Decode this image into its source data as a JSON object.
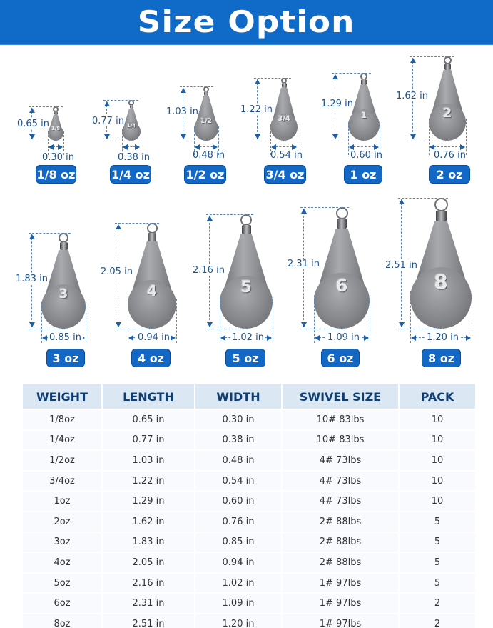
{
  "banner": {
    "title": "Size Option",
    "background_color": "#0f6bc7"
  },
  "accent_color": "#1268c4",
  "dimension_color": "#1d5591",
  "sinkers": [
    {
      "weight_label": "1/8 oz",
      "engraving": "1/8",
      "length": "0.65 in",
      "width": "0.30 in"
    },
    {
      "weight_label": "1/4 oz",
      "engraving": "1/4",
      "length": "0.77 in",
      "width": "0.38 in"
    },
    {
      "weight_label": "1/2 oz",
      "engraving": "1/2",
      "length": "1.03 in",
      "width": "0.48 in"
    },
    {
      "weight_label": "3/4 oz",
      "engraving": "3/4",
      "length": "1.22 in",
      "width": "0.54 in"
    },
    {
      "weight_label": "1 oz",
      "engraving": "1",
      "length": "1.29 in",
      "width": "0.60 in"
    },
    {
      "weight_label": "2 oz",
      "engraving": "2",
      "length": "1.62 in",
      "width": "0.76 in"
    },
    {
      "weight_label": "3 oz",
      "engraving": "3",
      "length": "1.83 in",
      "width": "0.85 in"
    },
    {
      "weight_label": "4 oz",
      "engraving": "4",
      "length": "2.05 in",
      "width": "0.94 in"
    },
    {
      "weight_label": "5 oz",
      "engraving": "5",
      "length": "2.16 in",
      "width": "1.02 in"
    },
    {
      "weight_label": "6 oz",
      "engraving": "6",
      "length": "2.31 in",
      "width": "1.09 in"
    },
    {
      "weight_label": "8 oz",
      "engraving": "8",
      "length": "2.51 in",
      "width": "1.20 in"
    }
  ],
  "table": {
    "headers": [
      "WEIGHT",
      "LENGTH",
      "WIDTH",
      "SWIVEL SIZE",
      "PACK"
    ],
    "rows": [
      [
        "1/8oz",
        "0.65 in",
        "0.30 in",
        "10# 83lbs",
        "10"
      ],
      [
        "1/4oz",
        "0.77 in",
        "0.38 in",
        "10# 83lbs",
        "10"
      ],
      [
        "1/2oz",
        "1.03 in",
        "0.48 in",
        "4# 73lbs",
        "10"
      ],
      [
        "3/4oz",
        "1.22 in",
        "0.54 in",
        "4# 73lbs",
        "10"
      ],
      [
        "1oz",
        "1.29 in",
        "0.60 in",
        "4# 73lbs",
        "10"
      ],
      [
        "2oz",
        "1.62 in",
        "0.76 in",
        "2# 88lbs",
        "5"
      ],
      [
        "3oz",
        "1.83 in",
        "0.85 in",
        "2# 88lbs",
        "5"
      ],
      [
        "4oz",
        "2.05 in",
        "0.94 in",
        "2# 88lbs",
        "5"
      ],
      [
        "5oz",
        "2.16 in",
        "1.02 in",
        "1# 97lbs",
        "5"
      ],
      [
        "6oz",
        "2.31 in",
        "1.09 in",
        "1# 97lbs",
        "2"
      ],
      [
        "8oz",
        "2.51 in",
        "1.20 in",
        "1# 97lbs",
        "2"
      ]
    ]
  }
}
